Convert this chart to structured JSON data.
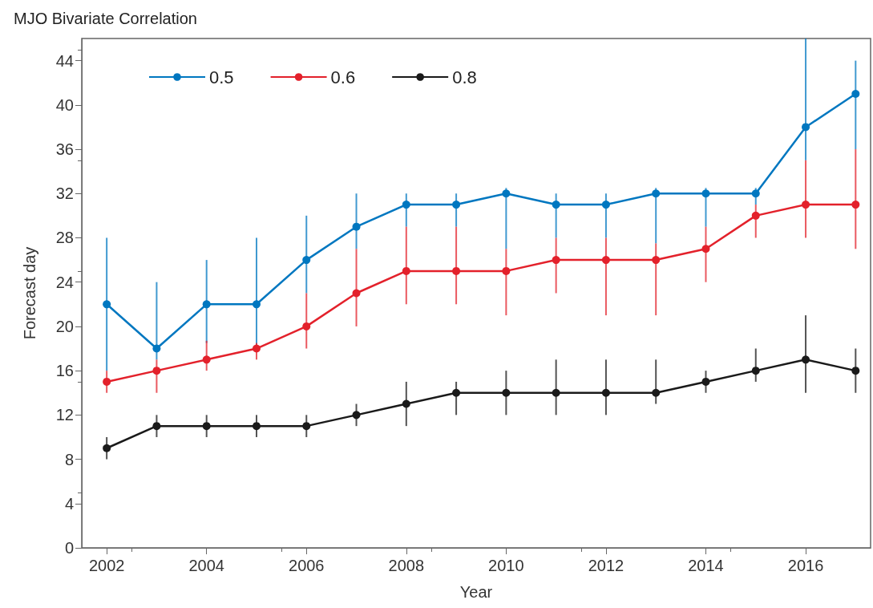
{
  "chart_data": {
    "type": "line",
    "title": "MJO Bivariate Correlation",
    "xlabel": "Year",
    "ylabel": "Forecast day",
    "x": [
      2002,
      2003,
      2004,
      2005,
      2006,
      2007,
      2008,
      2009,
      2010,
      2011,
      2012,
      2013,
      2014,
      2015,
      2016,
      2017
    ],
    "xlim": [
      2001.5,
      2017.3
    ],
    "xticks": [
      2002,
      2004,
      2006,
      2008,
      2010,
      2012,
      2014,
      2016
    ],
    "ylim": [
      0,
      46
    ],
    "yticks": [
      0,
      4,
      8,
      12,
      16,
      20,
      24,
      28,
      32,
      36,
      40,
      44
    ],
    "grid": false,
    "legend": "top left",
    "marker": "circle",
    "line_style": "solid",
    "series": [
      {
        "name": "0.5",
        "color": "#0077c0",
        "values": [
          22,
          18,
          22,
          22,
          26,
          29,
          31,
          31,
          32,
          31,
          31,
          32,
          32,
          32,
          38,
          41
        ],
        "errors": [
          [
            16,
            28
          ],
          [
            17,
            24
          ],
          [
            18.5,
            26
          ],
          [
            18,
            28
          ],
          [
            23,
            30
          ],
          [
            27,
            32
          ],
          [
            29,
            32
          ],
          [
            29,
            32
          ],
          [
            27,
            32.5
          ],
          [
            28,
            32
          ],
          [
            28,
            32
          ],
          [
            27.5,
            32.5
          ],
          [
            29,
            32.5
          ],
          [
            31,
            32.5
          ],
          [
            35,
            46
          ],
          [
            36,
            44
          ]
        ]
      },
      {
        "name": "0.6",
        "color": "#e3212b",
        "values": [
          15,
          16,
          17,
          18,
          20,
          23,
          25,
          25,
          25,
          26,
          26,
          26,
          27,
          30,
          31,
          31
        ],
        "errors": [
          [
            14,
            16
          ],
          [
            14,
            17
          ],
          [
            16,
            18.7
          ],
          [
            17,
            18.5
          ],
          [
            18,
            23
          ],
          [
            20,
            27
          ],
          [
            22,
            29
          ],
          [
            22,
            29
          ],
          [
            21,
            27
          ],
          [
            23,
            28
          ],
          [
            21,
            28
          ],
          [
            21,
            27.5
          ],
          [
            24,
            29
          ],
          [
            28,
            31
          ],
          [
            28,
            35
          ],
          [
            27,
            36
          ]
        ]
      },
      {
        "name": "0.8",
        "color": "#1a1a1a",
        "values": [
          9,
          11,
          11,
          11,
          11,
          12,
          13,
          14,
          14,
          14,
          14,
          14,
          15,
          16,
          17,
          16
        ],
        "errors": [
          [
            8,
            10
          ],
          [
            10,
            12
          ],
          [
            10,
            12
          ],
          [
            10,
            12
          ],
          [
            10,
            12
          ],
          [
            11,
            13
          ],
          [
            11,
            15
          ],
          [
            12,
            15
          ],
          [
            12,
            16
          ],
          [
            12,
            17
          ],
          [
            12,
            17
          ],
          [
            13,
            17
          ],
          [
            14,
            16
          ],
          [
            15,
            18
          ],
          [
            14,
            21
          ],
          [
            14,
            18
          ]
        ]
      }
    ]
  }
}
